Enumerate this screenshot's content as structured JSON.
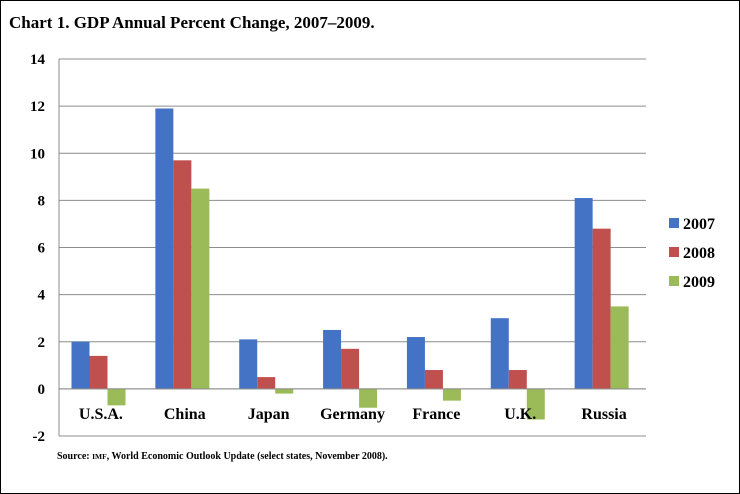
{
  "chart_data": {
    "type": "bar",
    "title": "Chart 1. GDP Annual Percent Change, 2007–2009.",
    "categories": [
      "U.S.A.",
      "China",
      "Japan",
      "Germany",
      "France",
      "U.K.",
      "Russia"
    ],
    "series": [
      {
        "name": "2007",
        "color": "#4472c4",
        "values": [
          2.0,
          11.9,
          2.1,
          2.5,
          2.2,
          3.0,
          8.1
        ]
      },
      {
        "name": "2008",
        "color": "#c0504d",
        "values": [
          1.4,
          9.7,
          0.5,
          1.7,
          0.8,
          0.8,
          6.8
        ]
      },
      {
        "name": "2009",
        "color": "#9bbb59",
        "values": [
          -0.7,
          8.5,
          -0.2,
          -0.8,
          -0.5,
          -1.3,
          3.5
        ]
      }
    ],
    "ylim": [
      -2,
      14
    ],
    "yticks": [
      -2,
      0,
      2,
      4,
      6,
      8,
      10,
      12,
      14
    ],
    "grid": true,
    "legend": "right",
    "source": {
      "prefix": "Source: ",
      "org": "IMF",
      "rest": ", World Economic Outlook Update (select states, November 2008)."
    }
  }
}
